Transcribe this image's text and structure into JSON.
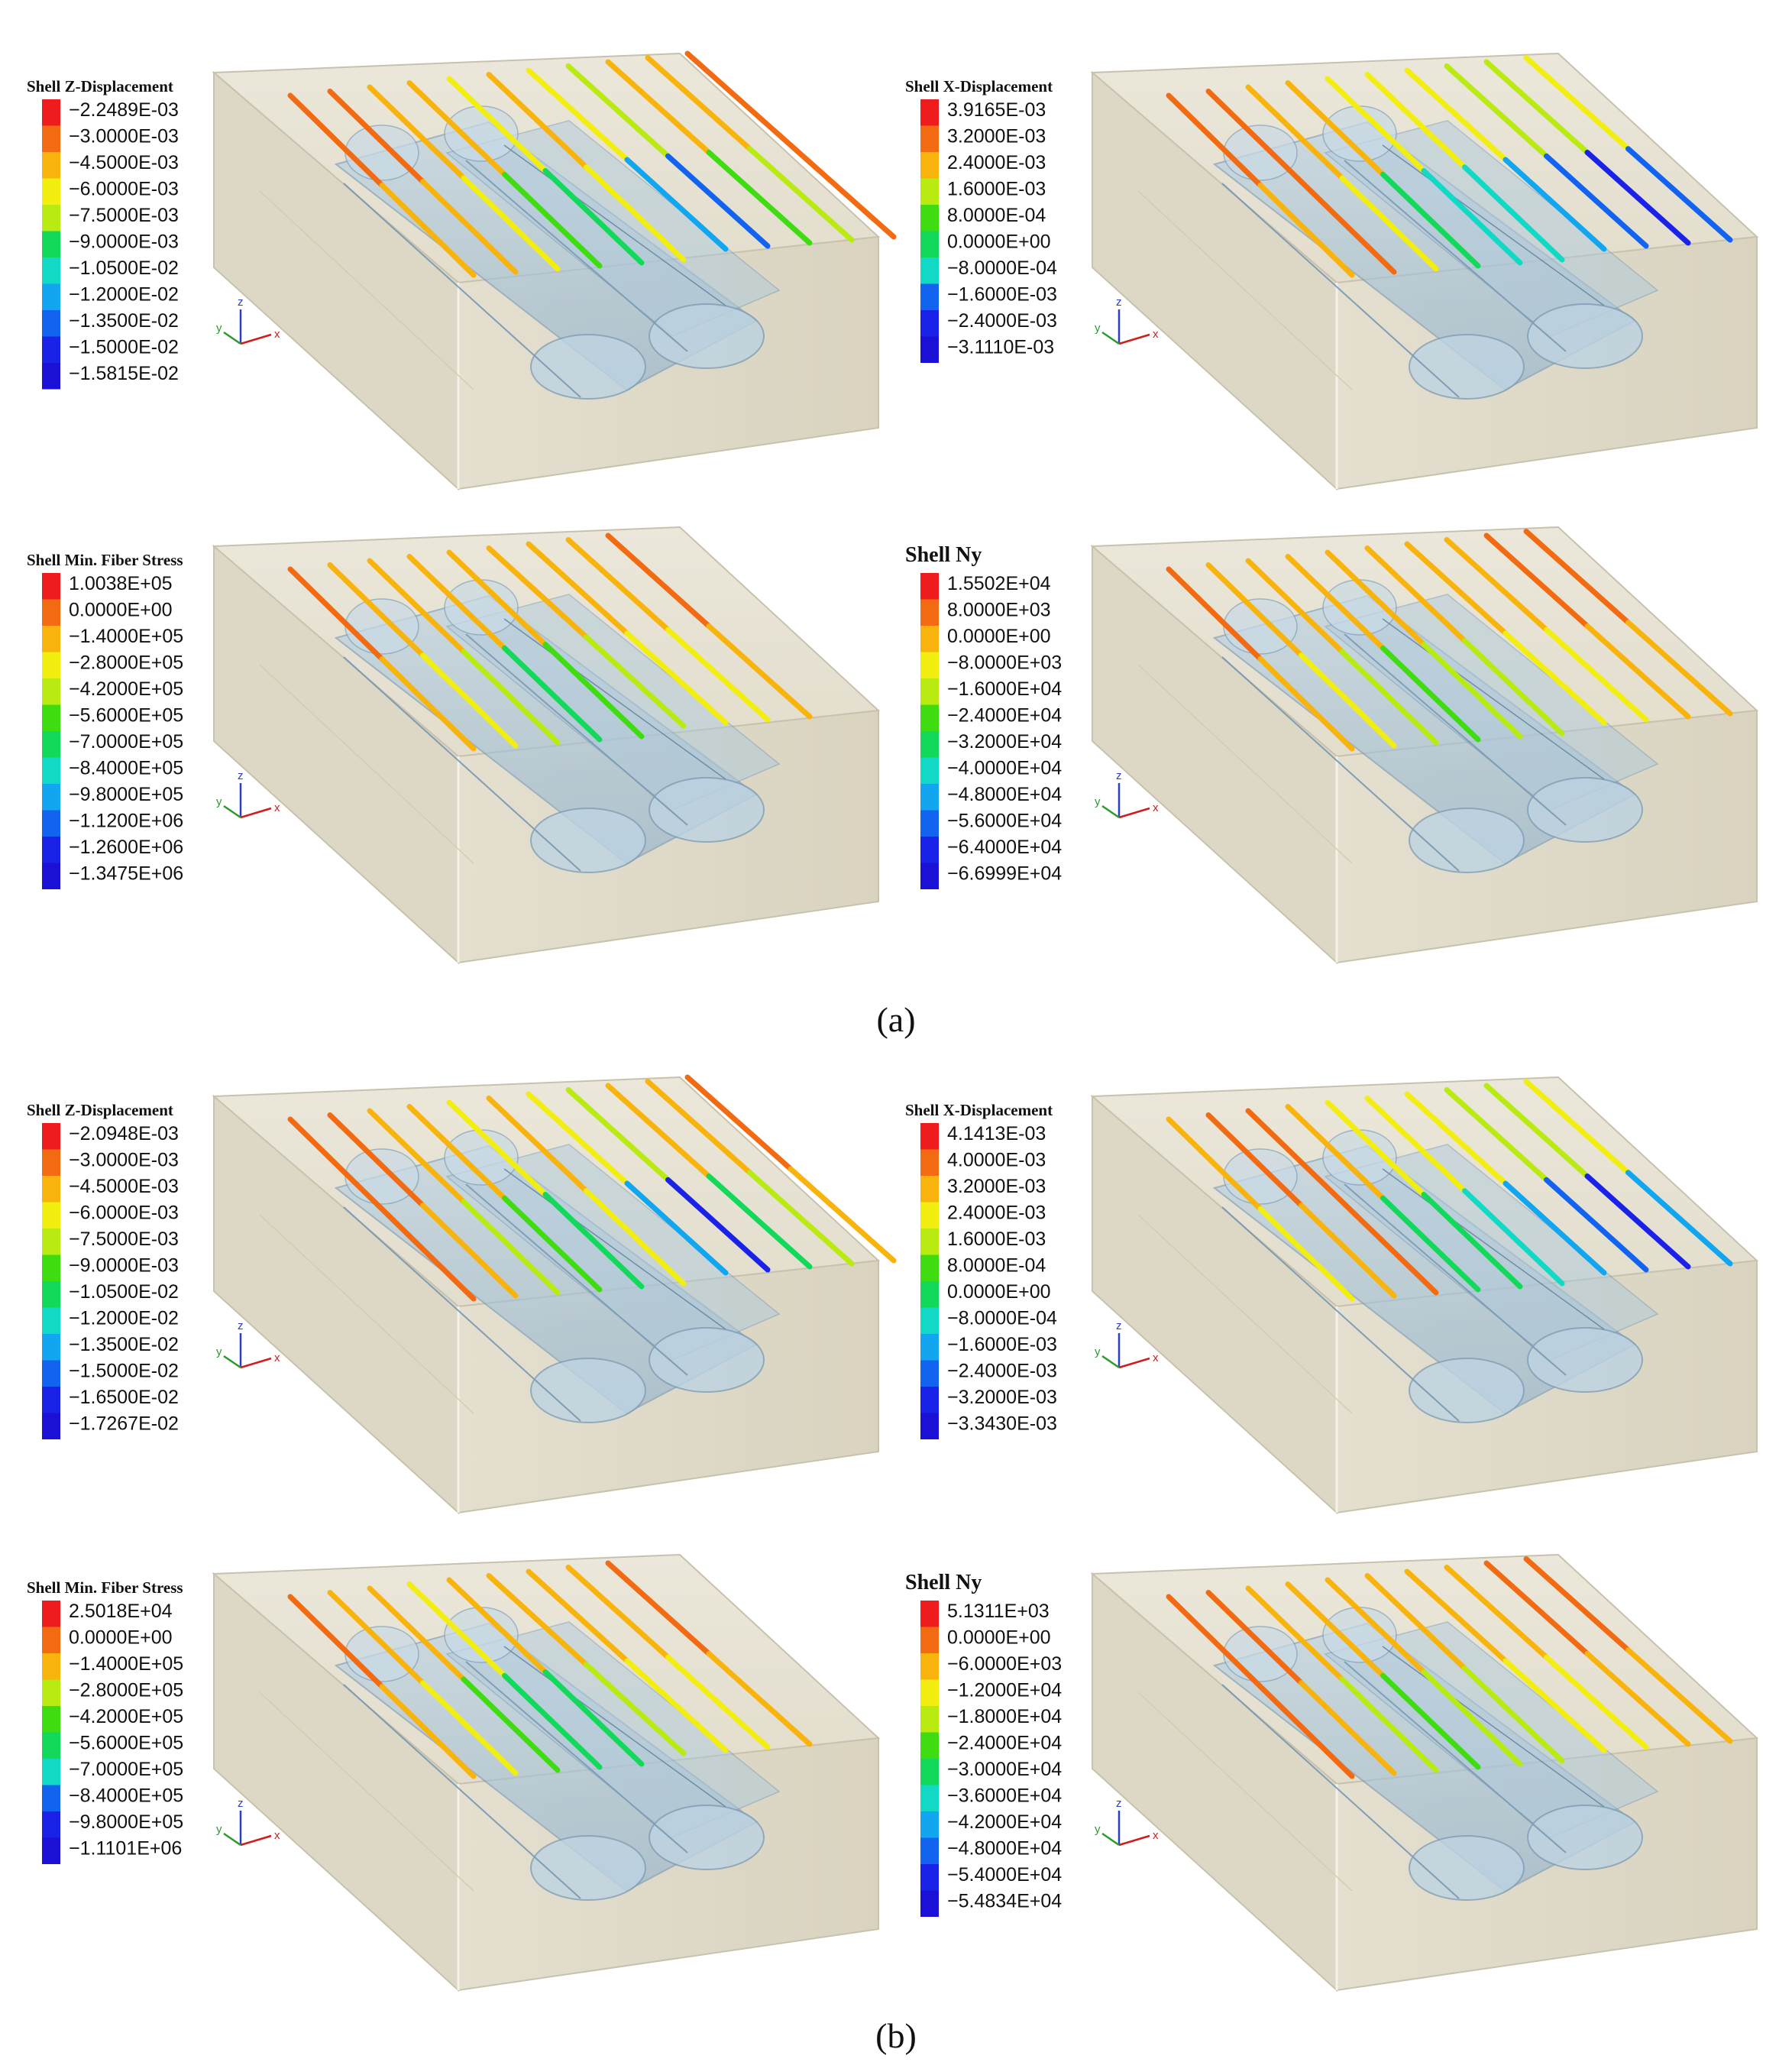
{
  "captions": [
    "(a)",
    "(b)"
  ],
  "colors": {
    "soil_box": "#e7e2d3",
    "soil_edge": "#c8c2ad",
    "tunnel": "#a8c6dd",
    "tunnel_edge": "#6f93b2",
    "axis_x": "#d01c1c",
    "axis_y": "#2c9a2c",
    "axis_z": "#2b3ec9",
    "legend_colors": [
      "#ee1c1c",
      "#f26b12",
      "#f8b30c",
      "#f2ee10",
      "#b9ea12",
      "#3fdc12",
      "#12d95a",
      "#12d9c6",
      "#12a6f0",
      "#1264f0",
      "#1a22e8",
      "#1a10d6"
    ]
  },
  "axis_labels": {
    "x": "x",
    "y": "y",
    "z": "z"
  },
  "panels": [
    {
      "id": "a-z",
      "title": "Shell Z-Displacement",
      "ticks": [
        "−2.2489E-03",
        "−3.0000E-03",
        "−4.5000E-03",
        "−6.0000E-03",
        "−7.5000E-03",
        "−9.0000E-03",
        "−1.0500E-02",
        "−1.2000E-02",
        "−1.3500E-02",
        "−1.5000E-02",
        "−1.5815E-02"
      ],
      "rods_low": [
        0.15,
        0.2,
        0.3,
        0.45,
        0.55,
        0.25,
        0.7,
        0.85,
        0.45,
        0.35,
        0.1
      ]
    },
    {
      "id": "a-x",
      "title": "Shell X-Displacement",
      "ticks": [
        "3.9165E-03",
        "3.2000E-03",
        "2.4000E-03",
        "1.6000E-03",
        "8.0000E-04",
        "0.0000E+00",
        "−8.0000E-04",
        "−1.6000E-03",
        "−2.4000E-03",
        "−3.1110E-03"
      ],
      "rods_low": [
        0.2,
        0.1,
        0.3,
        0.5,
        0.6,
        0.65,
        0.75,
        0.85,
        0.88,
        0.8
      ]
    },
    {
      "id": "a-fiber",
      "title": "Shell Min. Fiber Stress",
      "ticks": [
        "1.0038E+05",
        "0.0000E+00",
        "−1.4000E+05",
        "−2.8000E+05",
        "−4.2000E+05",
        "−5.6000E+05",
        "−7.0000E+05",
        "−8.4000E+05",
        "−9.8000E+05",
        "−1.1200E+06",
        "−1.2600E+06",
        "−1.3475E+06"
      ],
      "rods_low": [
        0.15,
        0.25,
        0.4,
        0.5,
        0.45,
        0.35,
        0.3,
        0.25,
        0.2
      ]
    },
    {
      "id": "a-ny",
      "title": "Shell Ny",
      "ticks": [
        "1.5502E+04",
        "8.0000E+03",
        "0.0000E+00",
        "−8.0000E+03",
        "−1.6000E+04",
        "−2.4000E+04",
        "−3.2000E+04",
        "−4.0000E+04",
        "−4.8000E+04",
        "−5.6000E+04",
        "−6.4000E+04",
        "−6.6999E+04"
      ],
      "rods_low": [
        0.2,
        0.3,
        0.4,
        0.45,
        0.4,
        0.35,
        0.3,
        0.25,
        0.2,
        0.2
      ]
    },
    {
      "id": "b-z",
      "title": "Shell Z-Displacement",
      "ticks": [
        "−2.0948E-03",
        "−3.0000E-03",
        "−4.5000E-03",
        "−6.0000E-03",
        "−7.5000E-03",
        "−9.0000E-03",
        "−1.0500E-02",
        "−1.2000E-02",
        "−1.3500E-02",
        "−1.5000E-02",
        "−1.6500E-02",
        "−1.7267E-02"
      ],
      "rods_low": [
        0.1,
        0.2,
        0.35,
        0.45,
        0.55,
        0.3,
        0.75,
        0.88,
        0.5,
        0.4,
        0.15
      ]
    },
    {
      "id": "b-x",
      "title": "Shell X-Displacement",
      "ticks": [
        "4.1413E-03",
        "4.0000E-03",
        "3.2000E-03",
        "2.4000E-03",
        "1.6000E-03",
        "8.0000E-04",
        "0.0000E+00",
        "−8.0000E-04",
        "−1.6000E-03",
        "−2.4000E-03",
        "−3.2000E-03",
        "−3.3430E-03"
      ],
      "rods_low": [
        0.3,
        0.2,
        0.1,
        0.5,
        0.55,
        0.65,
        0.75,
        0.85,
        0.9,
        0.75
      ]
    },
    {
      "id": "b-fiber",
      "title": "Shell Min. Fiber Stress",
      "ticks": [
        "2.5018E+04",
        "0.0000E+00",
        "−1.4000E+05",
        "−2.8000E+05",
        "−4.2000E+05",
        "−5.6000E+05",
        "−7.0000E+05",
        "−8.4000E+05",
        "−9.8000E+05",
        "−1.1101E+06"
      ],
      "rods_low": [
        0.2,
        0.3,
        0.45,
        0.55,
        0.5,
        0.4,
        0.3,
        0.25,
        0.2
      ]
    },
    {
      "id": "b-ny",
      "title": "Shell Ny",
      "ticks": [
        "5.1311E+03",
        "0.0000E+00",
        "−6.0000E+03",
        "−1.2000E+04",
        "−1.8000E+04",
        "−2.4000E+04",
        "−3.0000E+04",
        "−3.6000E+04",
        "−4.2000E+04",
        "−4.8000E+04",
        "−5.4000E+04",
        "−5.4834E+04"
      ],
      "rods_low": [
        0.1,
        0.2,
        0.35,
        0.45,
        0.4,
        0.35,
        0.3,
        0.25,
        0.2,
        0.15
      ]
    }
  ]
}
